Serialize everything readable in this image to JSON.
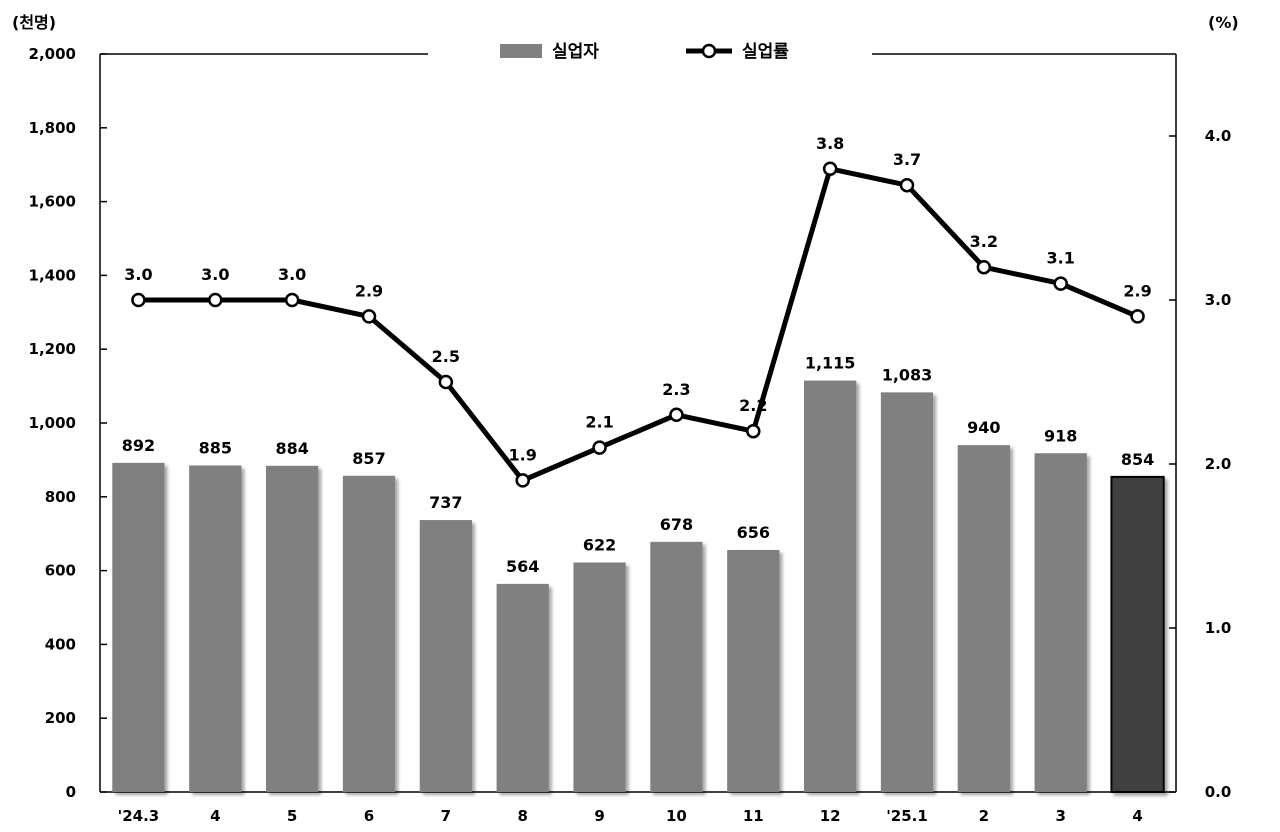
{
  "chart_data": {
    "type": "bar",
    "left_unit": "(천명)",
    "right_unit": "(%)",
    "categories": [
      "'24.3",
      "4",
      "5",
      "6",
      "7",
      "8",
      "9",
      "10",
      "11",
      "12",
      "'25.1",
      "2",
      "3",
      "4"
    ],
    "series": [
      {
        "name": "실업자",
        "type": "bar",
        "axis": "left",
        "color": "#808080",
        "highlight_color": "#404040",
        "highlight_index": 13,
        "values": [
          892,
          885,
          884,
          857,
          737,
          564,
          622,
          678,
          656,
          1115,
          1083,
          940,
          918,
          854
        ],
        "labels": [
          "892",
          "885",
          "884",
          "857",
          "737",
          "564",
          "622",
          "678",
          "656",
          "1,115",
          "1,083",
          "940",
          "918",
          "854"
        ]
      },
      {
        "name": "실업률",
        "type": "line",
        "axis": "right",
        "color": "#000000",
        "values": [
          3.0,
          3.0,
          3.0,
          2.9,
          2.5,
          1.9,
          2.1,
          2.3,
          2.2,
          3.8,
          3.7,
          3.2,
          3.1,
          2.9
        ],
        "labels": [
          "3.0",
          "3.0",
          "3.0",
          "2.9",
          "2.5",
          "1.9",
          "2.1",
          "2.3",
          "2.2",
          "3.8",
          "3.7",
          "3.2",
          "3.1",
          "2.9"
        ]
      }
    ],
    "y_left": {
      "lim": [
        0,
        2000
      ],
      "ticks": [
        0,
        200,
        400,
        600,
        800,
        1000,
        1200,
        1400,
        1600,
        1800,
        2000
      ],
      "tick_labels": [
        "0",
        "200",
        "400",
        "600",
        "800",
        "1,000",
        "1,200",
        "1,400",
        "1,600",
        "1,800",
        "2,000"
      ]
    },
    "y_right": {
      "lim": [
        0,
        4.5
      ],
      "ticks": [
        0,
        1,
        2,
        3,
        4
      ],
      "tick_labels": [
        "0.0",
        "1.0",
        "2.0",
        "3.0",
        "4.0"
      ]
    },
    "legend_position": "top-center",
    "grid": false
  }
}
